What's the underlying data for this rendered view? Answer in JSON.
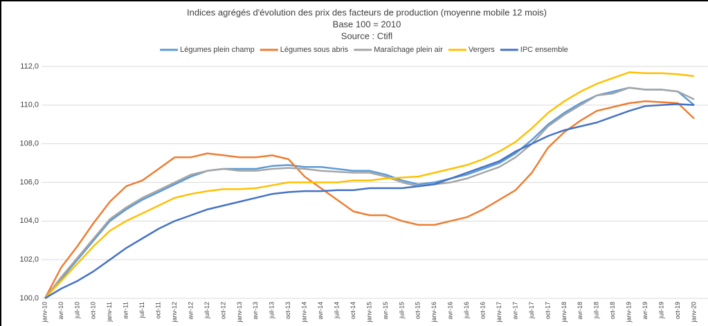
{
  "chart_data": {
    "type": "line",
    "title": "Indices agrégés d'évolution des prix des facteurs de production (moyenne mobile 12 mois)",
    "subtitle": "Base 100 = 2010",
    "source": "Source : Ctifl",
    "categories": [
      "janv-10",
      "avr-10",
      "juil-10",
      "oct-10",
      "janv-11",
      "avr-11",
      "juil-11",
      "oct-11",
      "janv-12",
      "avr-12",
      "juil-12",
      "oct-12",
      "janv-13",
      "avr-13",
      "juil-13",
      "oct-13",
      "janv-14",
      "avr-14",
      "juil-14",
      "oct-14",
      "janv-15",
      "avr-15",
      "juil-15",
      "oct-15",
      "janv-16",
      "avr-16",
      "juil-16",
      "oct-16",
      "janv-17",
      "avr-17",
      "juil-17",
      "oct-17",
      "janv-18",
      "avr-18",
      "juil-18",
      "oct-18",
      "janv-19",
      "avr-19",
      "juil-19",
      "oct-19",
      "janv-20"
    ],
    "series": [
      {
        "name": "Légumes plein champ",
        "color": "#5b9bd5",
        "values": [
          100,
          101.0,
          102.0,
          103.0,
          104.0,
          104.6,
          105.1,
          105.5,
          105.9,
          106.3,
          106.6,
          106.7,
          106.7,
          106.7,
          106.85,
          106.9,
          106.8,
          106.8,
          106.7,
          106.6,
          106.6,
          106.4,
          106.1,
          105.9,
          106.0,
          106.2,
          106.4,
          106.7,
          107.0,
          107.5,
          108.2,
          109.0,
          109.6,
          110.1,
          110.5,
          110.7,
          110.9,
          110.8,
          110.8,
          110.7,
          110.0
        ]
      },
      {
        "name": "Légumes sous abris",
        "color": "#ed7d31",
        "values": [
          100,
          101.6,
          102.7,
          103.9,
          105.0,
          105.8,
          106.1,
          106.7,
          107.3,
          107.3,
          107.5,
          107.4,
          107.3,
          107.3,
          107.4,
          107.2,
          106.3,
          105.7,
          105.1,
          104.5,
          104.3,
          104.3,
          104.0,
          103.8,
          103.8,
          104.0,
          104.2,
          104.6,
          105.1,
          105.6,
          106.5,
          107.8,
          108.6,
          109.2,
          109.7,
          109.9,
          110.1,
          110.2,
          110.15,
          110.1,
          109.3
        ]
      },
      {
        "name": "Maraîchage plein air",
        "color": "#a5a5a5",
        "values": [
          100,
          101.1,
          102.1,
          103.1,
          104.1,
          104.7,
          105.2,
          105.6,
          106.0,
          106.4,
          106.6,
          106.7,
          106.6,
          106.6,
          106.7,
          106.75,
          106.7,
          106.6,
          106.55,
          106.5,
          106.5,
          106.3,
          106.0,
          105.8,
          105.9,
          106.0,
          106.2,
          106.5,
          106.8,
          107.3,
          108.0,
          108.9,
          109.5,
          110.0,
          110.5,
          110.6,
          110.9,
          110.8,
          110.8,
          110.7,
          110.3
        ]
      },
      {
        "name": "Vergers",
        "color": "#ffc000",
        "values": [
          100,
          100.9,
          101.8,
          102.7,
          103.5,
          104.0,
          104.4,
          104.8,
          105.2,
          105.4,
          105.55,
          105.65,
          105.65,
          105.7,
          105.85,
          106.0,
          106.0,
          106.0,
          106.0,
          106.1,
          106.1,
          106.2,
          106.25,
          106.3,
          106.5,
          106.7,
          106.9,
          107.2,
          107.6,
          108.1,
          108.8,
          109.6,
          110.2,
          110.7,
          111.1,
          111.4,
          111.7,
          111.65,
          111.65,
          111.6,
          111.5
        ]
      },
      {
        "name": "IPC ensemble",
        "color": "#4472c4",
        "values": [
          100,
          100.5,
          100.9,
          101.4,
          102.0,
          102.6,
          103.1,
          103.6,
          104.0,
          104.3,
          104.6,
          104.8,
          105.0,
          105.2,
          105.4,
          105.5,
          105.55,
          105.55,
          105.6,
          105.6,
          105.7,
          105.7,
          105.7,
          105.8,
          105.9,
          106.2,
          106.5,
          106.8,
          107.1,
          107.6,
          108.0,
          108.4,
          108.7,
          108.9,
          109.1,
          109.4,
          109.7,
          109.95,
          110.0,
          110.05,
          110.0
        ]
      }
    ],
    "ylim": [
      100,
      112
    ],
    "yticks": [
      {
        "value": 100,
        "label": "100,0"
      },
      {
        "value": 102,
        "label": "102,0"
      },
      {
        "value": 104,
        "label": "104,0"
      },
      {
        "value": 106,
        "label": "106,0"
      },
      {
        "value": 108,
        "label": "108,0"
      },
      {
        "value": 110,
        "label": "110,0"
      },
      {
        "value": 112,
        "label": "112,0"
      }
    ],
    "grid": true,
    "legend": "top"
  }
}
